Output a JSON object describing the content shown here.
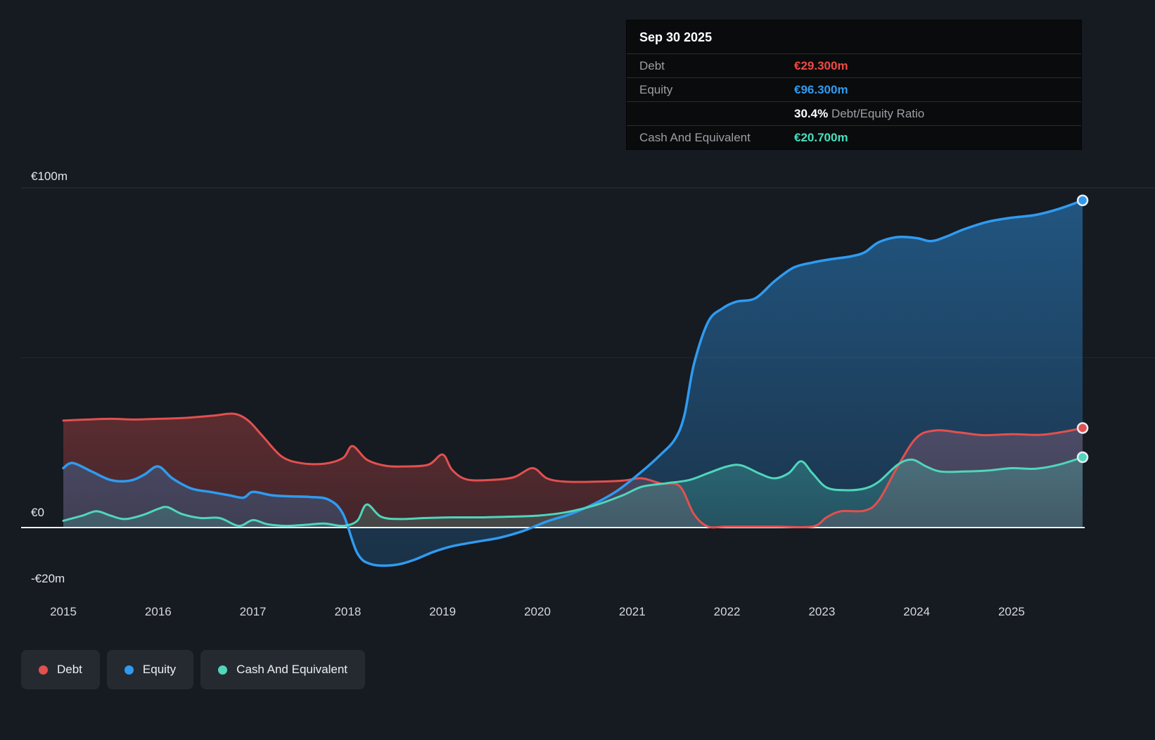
{
  "tooltip": {
    "title": "Sep 30 2025",
    "debt": {
      "label": "Debt",
      "value": "€29.300m",
      "color": "#ef4a44"
    },
    "equity": {
      "label": "Equity",
      "value": "€96.300m",
      "color": "#2f9bf0"
    },
    "ratio": {
      "value": "30.4%",
      "label": "Debt/Equity Ratio"
    },
    "cash": {
      "label": "Cash And Equivalent",
      "value": "€20.700m",
      "color": "#46e0c0"
    }
  },
  "y_axis": {
    "top": "€100m",
    "zero": "€0",
    "bottom": "-€20m"
  },
  "x_axis": [
    "2015",
    "2016",
    "2017",
    "2018",
    "2019",
    "2020",
    "2021",
    "2022",
    "2023",
    "2024",
    "2025"
  ],
  "legend": {
    "items": [
      {
        "label": "Debt",
        "color": "#e2504f"
      },
      {
        "label": "Equity",
        "color": "#2f9bf0"
      },
      {
        "label": "Cash And Equivalent",
        "color": "#4fd6bc"
      }
    ]
  },
  "chart_data": {
    "type": "area",
    "x_unit": "decimal_year",
    "xlim": [
      2015,
      2025.75
    ],
    "ylim": [
      -20,
      100
    ],
    "currency": "EUR",
    "value_unit": "millions",
    "gridlines_y": [
      100,
      50,
      0
    ],
    "legend_position": "bottom-left",
    "series": [
      {
        "name": "Debt",
        "color": "#e2504f",
        "final_label": "€29.300m",
        "x": [
          2015.0,
          2015.25,
          2015.5,
          2015.75,
          2016.0,
          2016.3,
          2016.6,
          2016.8,
          2016.95,
          2017.1,
          2017.3,
          2017.5,
          2017.75,
          2017.95,
          2018.05,
          2018.2,
          2018.4,
          2018.6,
          2018.85,
          2019.0,
          2019.1,
          2019.25,
          2019.5,
          2019.75,
          2019.95,
          2020.1,
          2020.3,
          2020.6,
          2020.9,
          2021.1,
          2021.3,
          2021.5,
          2021.65,
          2021.8,
          2022.0,
          2022.5,
          2022.9,
          2023.05,
          2023.2,
          2023.45,
          2023.6,
          2023.8,
          2024.0,
          2024.2,
          2024.45,
          2024.7,
          2025.0,
          2025.3,
          2025.55,
          2025.75
        ],
        "values": [
          31.5,
          31.8,
          32.0,
          31.8,
          32.0,
          32.3,
          33.0,
          33.5,
          31.5,
          27.0,
          21.0,
          19.0,
          18.8,
          20.5,
          24.0,
          20.0,
          18.2,
          18.0,
          18.5,
          21.5,
          17.0,
          14.2,
          14.0,
          14.8,
          17.5,
          14.5,
          13.5,
          13.5,
          13.8,
          14.5,
          13.0,
          12.2,
          4.0,
          0.3,
          0.3,
          0.3,
          0.3,
          3.0,
          4.8,
          5.0,
          8.0,
          18.0,
          26.5,
          28.6,
          28.0,
          27.2,
          27.5,
          27.3,
          28.2,
          29.3
        ]
      },
      {
        "name": "Equity",
        "color": "#2f9bf0",
        "final_label": "€96.300m",
        "x": [
          2015.0,
          2015.1,
          2015.3,
          2015.5,
          2015.7,
          2015.85,
          2016.0,
          2016.15,
          2016.35,
          2016.55,
          2016.75,
          2016.9,
          2017.0,
          2017.2,
          2017.4,
          2017.6,
          2017.8,
          2017.95,
          2018.1,
          2018.25,
          2018.5,
          2018.7,
          2018.9,
          2019.1,
          2019.35,
          2019.6,
          2019.85,
          2020.1,
          2020.35,
          2020.6,
          2020.85,
          2021.1,
          2021.3,
          2021.45,
          2021.55,
          2021.65,
          2021.8,
          2021.95,
          2022.1,
          2022.3,
          2022.5,
          2022.7,
          2022.9,
          2023.1,
          2023.3,
          2023.45,
          2023.6,
          2023.8,
          2024.0,
          2024.15,
          2024.3,
          2024.5,
          2024.75,
          2025.0,
          2025.25,
          2025.5,
          2025.75
        ],
        "values": [
          17.5,
          19.0,
          16.5,
          14.0,
          13.8,
          15.5,
          18.0,
          14.5,
          11.5,
          10.5,
          9.5,
          8.8,
          10.5,
          9.5,
          9.2,
          9.0,
          8.2,
          4.0,
          -7.5,
          -10.8,
          -11.0,
          -9.5,
          -7.2,
          -5.5,
          -4.2,
          -3.0,
          -1.0,
          1.8,
          4.0,
          7.0,
          11.0,
          16.5,
          21.5,
          26.0,
          33.0,
          48.0,
          60.5,
          64.5,
          66.5,
          67.5,
          72.5,
          76.5,
          78.0,
          79.0,
          79.8,
          81.0,
          84.0,
          85.5,
          85.2,
          84.3,
          85.5,
          87.8,
          90.0,
          91.2,
          92.0,
          93.8,
          96.3
        ]
      },
      {
        "name": "Cash And Equivalent",
        "color": "#4fd6bc",
        "final_label": "€20.700m",
        "x": [
          2015.0,
          2015.2,
          2015.35,
          2015.5,
          2015.65,
          2015.85,
          2016.0,
          2016.1,
          2016.25,
          2016.45,
          2016.65,
          2016.85,
          2017.0,
          2017.15,
          2017.35,
          2017.55,
          2017.75,
          2017.95,
          2018.1,
          2018.2,
          2018.35,
          2018.55,
          2018.8,
          2019.1,
          2019.4,
          2019.7,
          2020.0,
          2020.3,
          2020.6,
          2020.9,
          2021.1,
          2021.35,
          2021.6,
          2021.8,
          2022.0,
          2022.15,
          2022.35,
          2022.5,
          2022.65,
          2022.78,
          2022.9,
          2023.05,
          2023.25,
          2023.45,
          2023.6,
          2023.8,
          2023.95,
          2024.1,
          2024.25,
          2024.5,
          2024.75,
          2025.0,
          2025.25,
          2025.5,
          2025.75
        ],
        "values": [
          2.0,
          3.5,
          4.8,
          3.5,
          2.5,
          3.8,
          5.5,
          6.0,
          4.0,
          2.8,
          2.8,
          0.5,
          2.2,
          1.0,
          0.5,
          0.8,
          1.2,
          0.5,
          2.0,
          6.8,
          3.2,
          2.5,
          2.8,
          3.0,
          3.0,
          3.2,
          3.5,
          4.5,
          6.5,
          9.5,
          12.0,
          13.0,
          14.0,
          16.0,
          18.0,
          18.3,
          15.8,
          14.5,
          16.0,
          19.5,
          16.0,
          11.8,
          11.0,
          11.5,
          13.5,
          18.5,
          20.0,
          18.0,
          16.5,
          16.5,
          16.8,
          17.5,
          17.3,
          18.5,
          20.7
        ]
      }
    ]
  }
}
